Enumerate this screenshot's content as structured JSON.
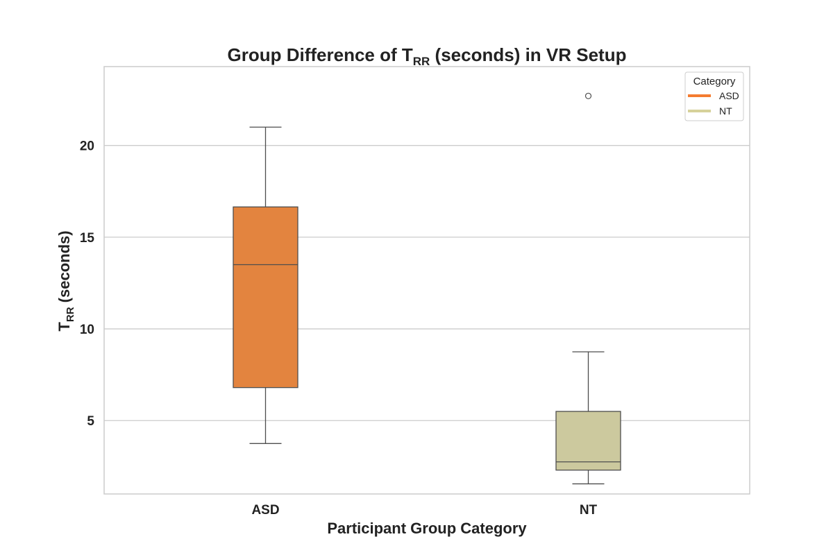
{
  "chart_data": {
    "type": "box",
    "title_main": "Group Difference of T",
    "title_sub": "RR",
    "title_tail": " (seconds) in VR Setup",
    "xlabel": "Participant Group Category",
    "ylabel_main": "T",
    "ylabel_sub": "RR",
    "ylabel_tail": " (seconds)",
    "ylim": [
      1.0,
      24.3
    ],
    "yticks": [
      5,
      10,
      15,
      20
    ],
    "grid": true,
    "categories": [
      "ASD",
      "NT"
    ],
    "boxes": [
      {
        "name": "ASD",
        "color": "#e3843f",
        "whisker_low": 3.75,
        "q1": 6.8,
        "median": 13.5,
        "q3": 16.65,
        "whisker_high": 21.0,
        "outliers": []
      },
      {
        "name": "NT",
        "color": "#ccc99e",
        "whisker_low": 1.55,
        "q1": 2.3,
        "median": 2.75,
        "q3": 5.5,
        "whisker_high": 8.75,
        "outliers": [
          22.7
        ]
      }
    ],
    "legend": {
      "title": "Category",
      "position": "top-right",
      "items": [
        {
          "label": "ASD",
          "color": "#f47c30"
        },
        {
          "label": "NT",
          "color": "#d6d19a"
        }
      ]
    }
  }
}
